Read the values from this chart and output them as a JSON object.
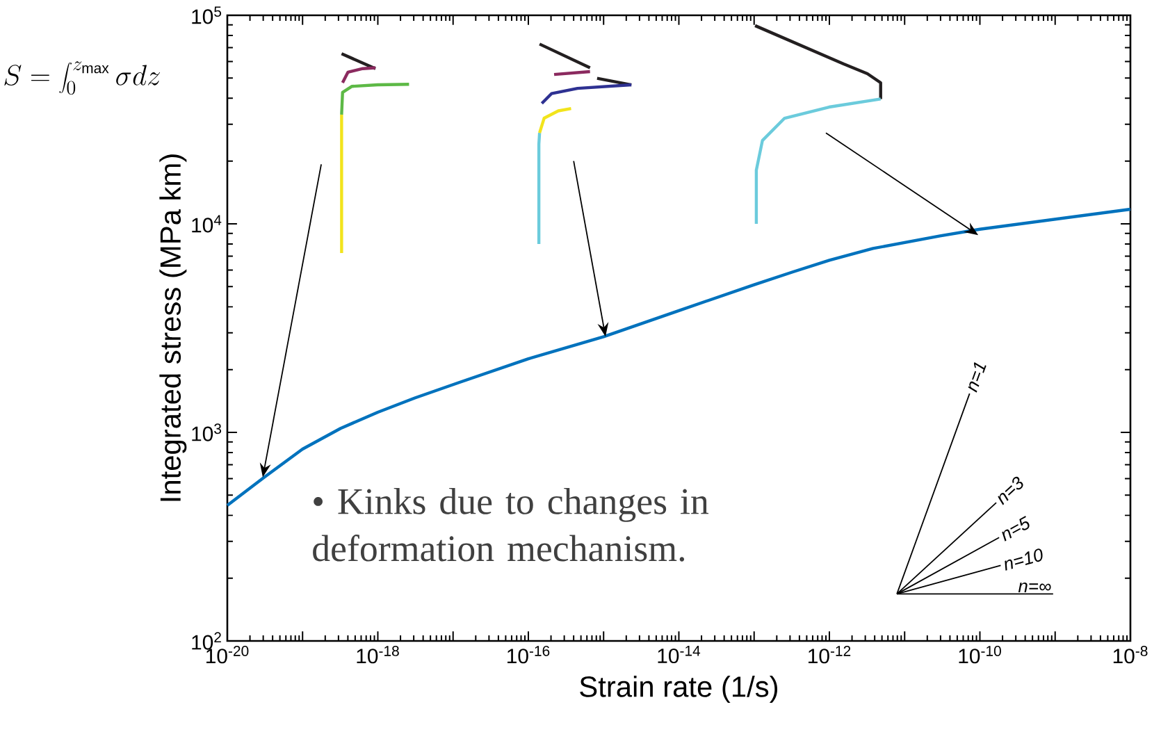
{
  "chart_data": {
    "type": "line",
    "xlabel": "Strain rate (1/s)",
    "ylabel": "Integrated stress (MPa km)",
    "log": "xy",
    "xlim": [
      1e-20,
      1e-08
    ],
    "ylim": [
      100,
      100000
    ],
    "xticks": [
      {
        "value": 1e-20,
        "label": "10$^{-20}$"
      },
      {
        "value": 1e-19,
        "label": null
      },
      {
        "value": 1e-18,
        "label": "10$^{-18}$"
      },
      {
        "value": 1e-17,
        "label": null
      },
      {
        "value": 1e-16,
        "label": "10$^{-16}$"
      },
      {
        "value": 1e-15,
        "label": null
      },
      {
        "value": 1e-14,
        "label": "10$^{-14}$"
      },
      {
        "value": 1e-13,
        "label": null
      },
      {
        "value": 1e-12,
        "label": "10$^{-12}$"
      },
      {
        "value": 1e-11,
        "label": null
      },
      {
        "value": 1e-10,
        "label": "10$^{-10}$"
      },
      {
        "value": 1e-09,
        "label": null
      },
      {
        "value": 1e-08,
        "label": "10$^{-8}$"
      }
    ],
    "yticks": [
      {
        "value": 100,
        "label": "10$^{2}$"
      },
      {
        "value": 1000,
        "label": "10$^{3}$"
      },
      {
        "value": 10000,
        "label": "10$^{4}$"
      },
      {
        "value": 100000,
        "label": "10$^{5}$"
      }
    ],
    "series": [
      {
        "color": "#0072bd",
        "x": [
          1e-20,
          3.1e-20,
          1e-19,
          3.2e-19,
          1e-18,
          3.1e-18,
          1.2e-17,
          1e-16,
          1e-15,
          1e-14,
          1e-13,
          3.2e-13,
          1e-12,
          3.8e-12,
          2.95e-11,
          1e-10,
          1e-08
        ],
        "values": [
          447,
          610,
          832,
          1045,
          1250,
          1462,
          1734,
          2254,
          2877,
          3837,
          5105,
          5866,
          6686,
          7621,
          8750,
          9420,
          11750
        ]
      },
      {
        "color": "#231f20",
        "x": [
          3.3e-19,
          9.3e-19
        ],
        "values": [
          65400,
          55500
        ]
      },
      {
        "color": "#8b2a5f",
        "x": [
          3.4e-19,
          4e-19,
          6.3e-19,
          9.3e-19
        ],
        "values": [
          47500,
          53300,
          55500,
          56000
        ]
      },
      {
        "color": "#f2e41c",
        "x": [
          3.3e-19,
          3.3e-19
        ],
        "values": [
          7250,
          33400
        ]
      },
      {
        "color": "#5db946",
        "x": [
          3.3e-19,
          3.4e-19,
          4.5e-19,
          9.9e-19,
          2.6e-18
        ],
        "values": [
          33400,
          42700,
          45600,
          46400,
          46700
        ]
      },
      {
        "color": "#231f20",
        "x": [
          1.41e-16,
          6.6e-16
        ],
        "values": [
          72800,
          56000
        ]
      },
      {
        "color": "#8b2a5f",
        "x": [
          2.2e-16,
          6.6e-16
        ],
        "values": [
          52000,
          53700
        ]
      },
      {
        "color": "#231f20",
        "x": [
          8.2e-16,
          2.34e-15
        ],
        "values": [
          49900,
          46400
        ]
      },
      {
        "color": "#2e3192",
        "x": [
          1.51e-16,
          2.03e-16,
          4.5e-16,
          2.34e-15
        ],
        "values": [
          37800,
          42100,
          44600,
          46400
        ]
      },
      {
        "color": "#6bcbdc",
        "x": [
          1.38e-16,
          1.38e-16,
          1.41e-16
        ],
        "values": [
          8000,
          24100,
          27300
        ]
      },
      {
        "color": "#f2e41c",
        "x": [
          1.41e-16,
          1.62e-16,
          2.5e-16,
          3.7e-16
        ],
        "values": [
          27300,
          32100,
          34800,
          35700
        ]
      },
      {
        "color": "#231f20",
        "x": [
          1.03e-13,
          1.55e-12,
          3.2e-12,
          4.8e-12,
          4.8e-12
        ],
        "values": [
          89200,
          58400,
          52500,
          47500,
          39700
        ]
      },
      {
        "color": "#6bcbdc",
        "x": [
          1.07e-13,
          1.07e-13,
          1.29e-13,
          2.54e-13,
          9.9e-13,
          4.8e-12
        ],
        "values": [
          10000,
          18100,
          25100,
          32100,
          36300,
          39700
        ]
      },
      {
        "color": "#000000",
        "x": [
          7.9e-12,
          7.3e-11
        ],
        "values": [
          168,
          1535
        ]
      },
      {
        "color": "#000000",
        "x": [
          7.9e-12,
          1.65e-10
        ],
        "values": [
          168,
          460
        ]
      },
      {
        "color": "#000000",
        "x": [
          7.9e-12,
          1.8e-10
        ],
        "values": [
          168,
          313
        ]
      },
      {
        "color": "#000000",
        "x": [
          7.9e-12,
          1.89e-10
        ],
        "values": [
          168,
          230
        ]
      },
      {
        "color": "#000000",
        "x": [
          7.9e-12,
          9.4e-10
        ],
        "values": [
          168,
          168
        ]
      }
    ],
    "annotations": [
      "S=\\int_{0}^{z_{\\mathrm{max}}}\\sigma dz",
      "• Kinks due to changes in deformation mechanism.",
      "n=1",
      "n=3",
      "n=5",
      "n=10",
      "n=∞"
    ]
  }
}
